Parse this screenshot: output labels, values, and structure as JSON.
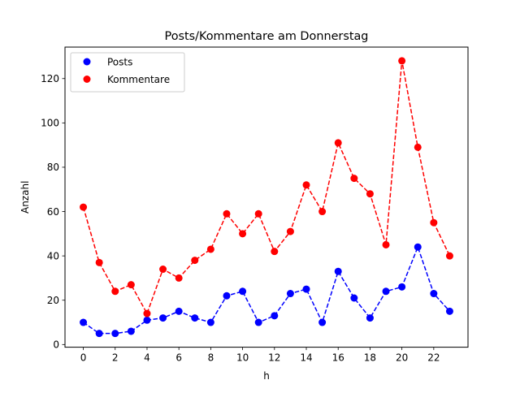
{
  "chart_data": {
    "type": "line",
    "title": "Posts/Kommentare am Donnerstag",
    "xlabel": "h",
    "ylabel": "Anzahl",
    "x": [
      0,
      1,
      2,
      3,
      4,
      5,
      6,
      7,
      8,
      9,
      10,
      11,
      12,
      13,
      14,
      15,
      16,
      17,
      18,
      19,
      20,
      21,
      22,
      23
    ],
    "xlim": [
      -1.15,
      24.15
    ],
    "ylim": [
      -1.2,
      134.2
    ],
    "xticks": [
      0,
      2,
      4,
      6,
      8,
      10,
      12,
      14,
      16,
      18,
      20,
      22
    ],
    "yticks": [
      0,
      20,
      40,
      60,
      80,
      100,
      120
    ],
    "grid": false,
    "legend_position": "top-left",
    "series": [
      {
        "name": "Posts",
        "color": "#0000ff",
        "line_style": "dashed",
        "marker": "circle",
        "values": [
          10,
          5,
          5,
          6,
          11,
          12,
          15,
          12,
          10,
          22,
          24,
          10,
          13,
          23,
          25,
          10,
          33,
          21,
          12,
          24,
          26,
          44,
          23,
          15
        ]
      },
      {
        "name": "Kommentare",
        "color": "#ff0000",
        "line_style": "dashed",
        "marker": "circle",
        "values": [
          62,
          37,
          24,
          27,
          14,
          34,
          30,
          38,
          43,
          59,
          50,
          59,
          42,
          51,
          72,
          60,
          91,
          75,
          68,
          45,
          128,
          89,
          55,
          40
        ]
      }
    ]
  }
}
